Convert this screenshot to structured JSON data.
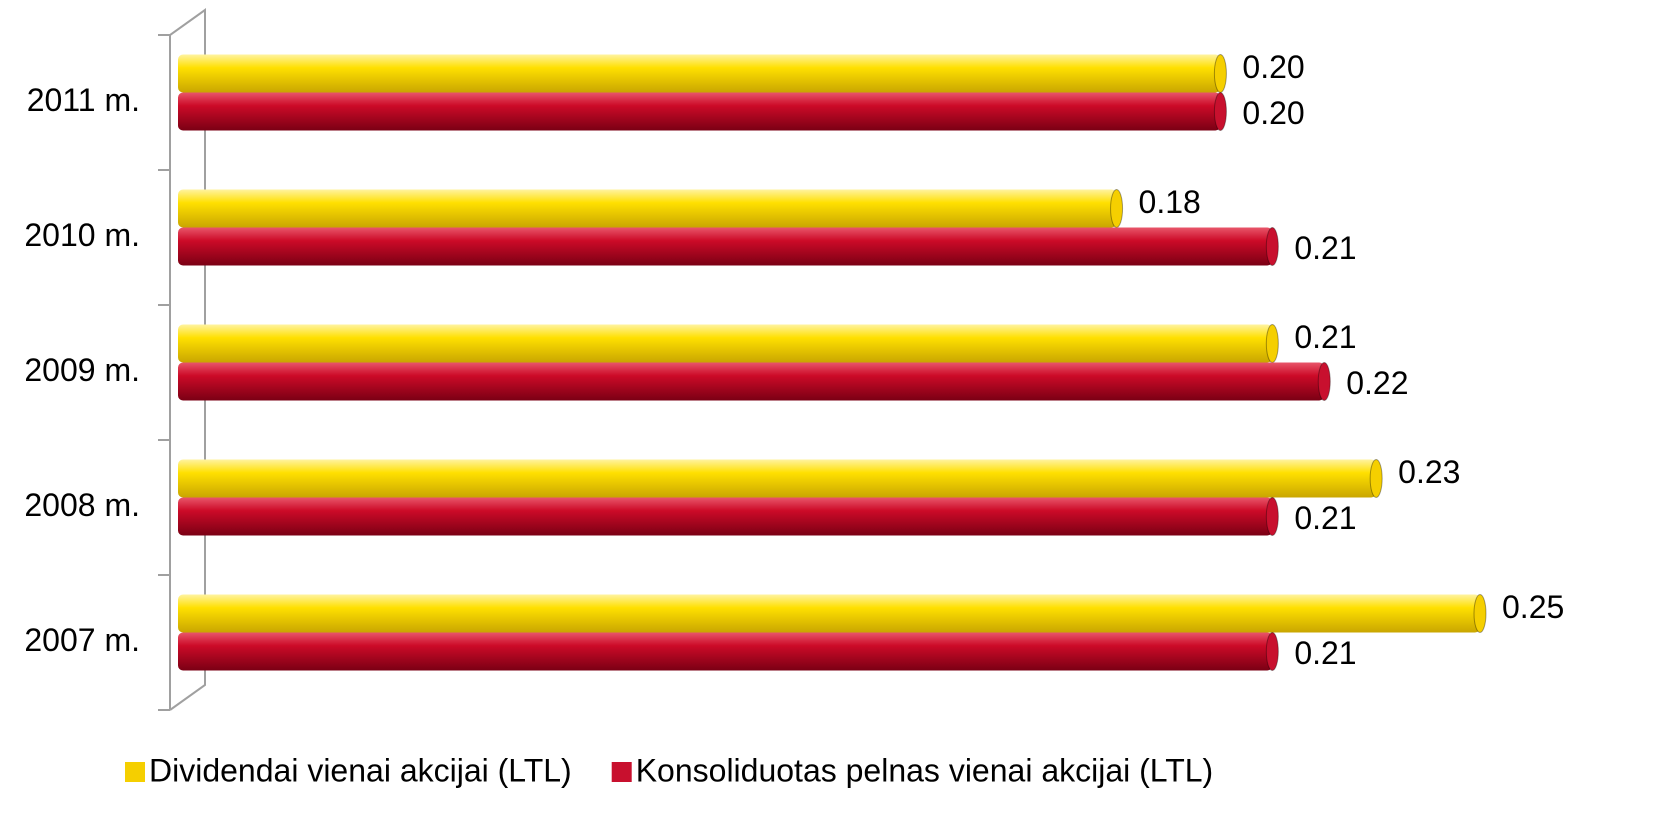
{
  "chart_data": {
    "type": "bar",
    "orientation": "horizontal",
    "categories": [
      "2011 m.",
      "2010 m.",
      "2009 m.",
      "2008 m.",
      "2007 m."
    ],
    "series": [
      {
        "name": "Dividendai vienai akcijai (LTL)",
        "color": "#f5cf00",
        "values": [
          0.2,
          0.18,
          0.21,
          0.23,
          0.25
        ],
        "value_labels": [
          "0.20",
          "0.18",
          "0.21",
          "0.23",
          "0.25"
        ]
      },
      {
        "name": "Konsoliduotas pelnas vienai akcijai (LTL)",
        "color": "#c8102e",
        "values": [
          0.2,
          0.21,
          0.22,
          0.21,
          0.21
        ],
        "value_labels": [
          "0.20",
          "0.21",
          "0.22",
          "0.21",
          "0.21"
        ]
      }
    ],
    "xlim": [
      0,
      0.25
    ],
    "legend": "bottom"
  }
}
